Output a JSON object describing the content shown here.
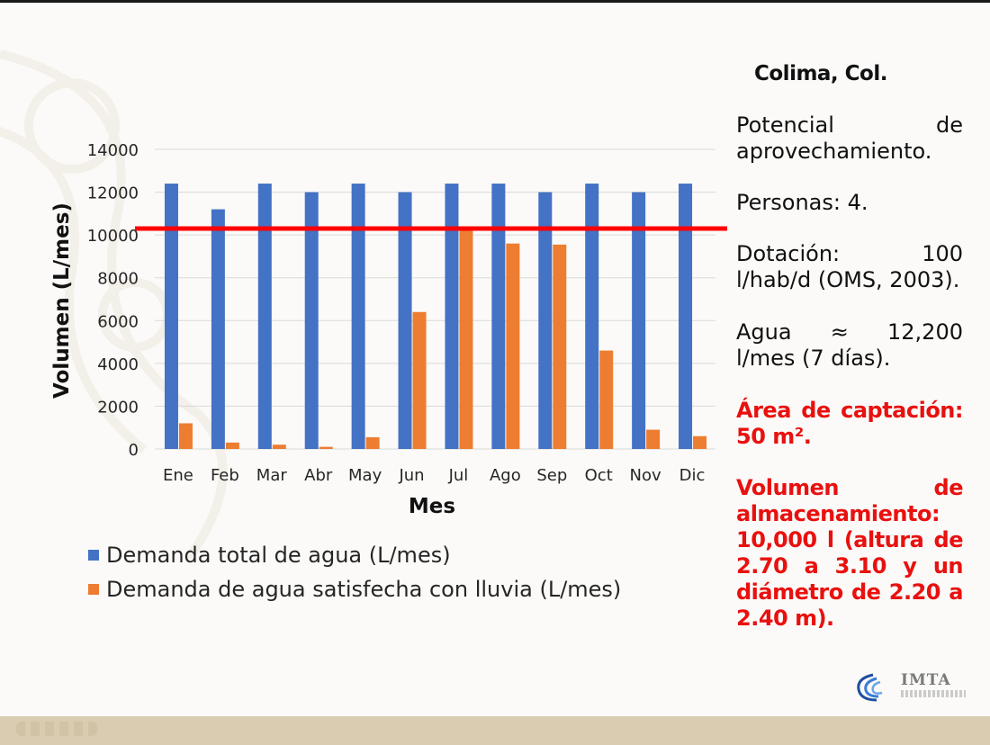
{
  "chart_data": {
    "type": "bar",
    "categories": [
      "Ene",
      "Feb",
      "Mar",
      "Abr",
      "May",
      "Jun",
      "Jul",
      "Ago",
      "Sep",
      "Oct",
      "Nov",
      "Dic"
    ],
    "series": [
      {
        "name": "Demanda total de agua (L/mes)",
        "color": "#4472c4",
        "values": [
          12400,
          11200,
          12400,
          12000,
          12400,
          12000,
          12400,
          12400,
          12000,
          12400,
          12000,
          12400
        ]
      },
      {
        "name": "Demanda de agua satisfecha con lluvia (L/mes)",
        "color": "#ed7d31",
        "values": [
          1200,
          300,
          200,
          100,
          550,
          6400,
          10200,
          9600,
          9550,
          4600,
          900,
          600
        ]
      }
    ],
    "xlabel": "Mes",
    "ylabel": "Volumen (L/mes)",
    "ylim": [
      0,
      14000
    ],
    "yticks": [
      0,
      2000,
      4000,
      6000,
      8000,
      10000,
      12000,
      14000
    ],
    "reference_line": {
      "value": 10300,
      "color": "#ff0000"
    },
    "grid": true,
    "legend_position": "bottom-left"
  },
  "panel": {
    "title": "Colima, Col.",
    "potencial": "Potencial de aprovechamiento.",
    "personas": "Personas: 4.",
    "dotacion": "Dotación: 100 l/hab/d (OMS, 2003).",
    "agua": "Agua ≈ 12,200 l/mes (7 días).",
    "area": "Área de captación: 50 m².",
    "volumen": "Volumen de almacenamiento: 10,000 l (altura de 2.70 a 3.10 y un diámetro de 2.20 a 2.40 m)."
  },
  "logo": {
    "text": "IMTA"
  }
}
